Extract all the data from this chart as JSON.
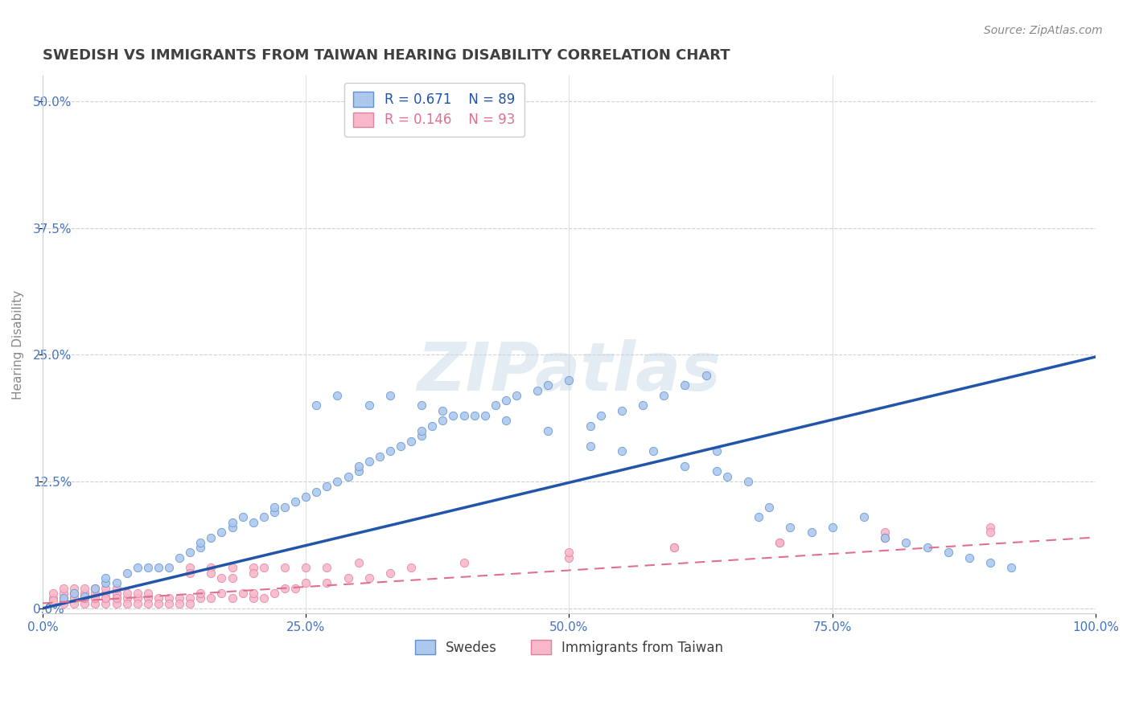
{
  "title": "SWEDISH VS IMMIGRANTS FROM TAIWAN HEARING DISABILITY CORRELATION CHART",
  "source": "Source: ZipAtlas.com",
  "ylabel": "Hearing Disability",
  "xlabel": "",
  "xlim": [
    0.0,
    1.0
  ],
  "ylim": [
    -0.005,
    0.525
  ],
  "yticks": [
    0.0,
    0.125,
    0.25,
    0.375,
    0.5
  ],
  "ytick_labels": [
    "0.0%",
    "12.5%",
    "25.0%",
    "37.5%",
    "50.0%"
  ],
  "xticks": [
    0.0,
    0.25,
    0.5,
    0.75,
    1.0
  ],
  "xtick_labels": [
    "0.0%",
    "25.0%",
    "50.0%",
    "75.0%",
    "100.0%"
  ],
  "swede_color": "#adc8ed",
  "swede_edge_color": "#6090d0",
  "swede_line_color": "#2255aa",
  "taiwan_color": "#f8b8ca",
  "taiwan_edge_color": "#e080a0",
  "taiwan_line_color": "#e07090",
  "R_swede": 0.671,
  "N_swede": 89,
  "R_taiwan": 0.146,
  "N_taiwan": 93,
  "legend_label_swede": "Swedes",
  "legend_label_taiwan": "Immigrants from Taiwan",
  "watermark": "ZIPatlas",
  "background_color": "#ffffff",
  "grid_color": "#d0d0d0",
  "title_color": "#404040",
  "tick_color": "#4472c4",
  "swede_regression_slope": 0.248,
  "swede_regression_intercept": 0.0,
  "taiwan_regression_slope": 0.065,
  "taiwan_regression_intercept": 0.005,
  "swede_scatter_x": [
    0.02,
    0.03,
    0.04,
    0.05,
    0.06,
    0.06,
    0.07,
    0.08,
    0.09,
    0.1,
    0.11,
    0.12,
    0.13,
    0.14,
    0.15,
    0.15,
    0.16,
    0.17,
    0.18,
    0.18,
    0.19,
    0.2,
    0.21,
    0.22,
    0.22,
    0.23,
    0.24,
    0.25,
    0.26,
    0.27,
    0.28,
    0.29,
    0.3,
    0.3,
    0.31,
    0.32,
    0.33,
    0.34,
    0.35,
    0.36,
    0.36,
    0.37,
    0.38,
    0.39,
    0.4,
    0.42,
    0.43,
    0.44,
    0.45,
    0.47,
    0.48,
    0.5,
    0.52,
    0.53,
    0.55,
    0.57,
    0.59,
    0.61,
    0.63,
    0.64,
    0.65,
    0.67,
    0.68,
    0.69,
    0.71,
    0.73,
    0.75,
    0.78,
    0.8,
    0.82,
    0.84,
    0.86,
    0.88,
    0.9,
    0.92,
    0.26,
    0.28,
    0.31,
    0.33,
    0.36,
    0.38,
    0.41,
    0.44,
    0.48,
    0.52,
    0.55,
    0.58,
    0.61,
    0.64
  ],
  "swede_scatter_y": [
    0.01,
    0.015,
    0.012,
    0.02,
    0.025,
    0.03,
    0.025,
    0.035,
    0.04,
    0.04,
    0.04,
    0.04,
    0.05,
    0.055,
    0.06,
    0.065,
    0.07,
    0.075,
    0.08,
    0.085,
    0.09,
    0.085,
    0.09,
    0.095,
    0.1,
    0.1,
    0.105,
    0.11,
    0.115,
    0.12,
    0.125,
    0.13,
    0.135,
    0.14,
    0.145,
    0.15,
    0.155,
    0.16,
    0.165,
    0.17,
    0.175,
    0.18,
    0.185,
    0.19,
    0.19,
    0.19,
    0.2,
    0.205,
    0.21,
    0.215,
    0.22,
    0.225,
    0.18,
    0.19,
    0.195,
    0.2,
    0.21,
    0.22,
    0.23,
    0.155,
    0.13,
    0.125,
    0.09,
    0.1,
    0.08,
    0.075,
    0.08,
    0.09,
    0.07,
    0.065,
    0.06,
    0.055,
    0.05,
    0.045,
    0.04,
    0.2,
    0.21,
    0.2,
    0.21,
    0.2,
    0.195,
    0.19,
    0.185,
    0.175,
    0.16,
    0.155,
    0.155,
    0.14,
    0.135
  ],
  "taiwan_scatter_x": [
    0.01,
    0.01,
    0.01,
    0.02,
    0.02,
    0.02,
    0.02,
    0.02,
    0.03,
    0.03,
    0.03,
    0.03,
    0.04,
    0.04,
    0.04,
    0.04,
    0.05,
    0.05,
    0.05,
    0.05,
    0.06,
    0.06,
    0.06,
    0.06,
    0.07,
    0.07,
    0.07,
    0.07,
    0.08,
    0.08,
    0.08,
    0.09,
    0.09,
    0.09,
    0.1,
    0.1,
    0.1,
    0.11,
    0.11,
    0.12,
    0.12,
    0.13,
    0.13,
    0.14,
    0.14,
    0.15,
    0.15,
    0.16,
    0.17,
    0.18,
    0.19,
    0.2,
    0.2,
    0.21,
    0.22,
    0.23,
    0.24,
    0.25,
    0.27,
    0.29,
    0.31,
    0.33,
    0.35,
    0.14,
    0.16,
    0.18,
    0.2,
    0.14,
    0.16,
    0.17,
    0.18,
    0.2,
    0.21,
    0.23,
    0.25,
    0.27,
    0.3,
    0.4,
    0.5,
    0.6,
    0.7,
    0.8,
    0.9,
    0.5,
    0.6,
    0.7,
    0.8,
    0.9,
    0.03,
    0.04,
    0.05,
    0.06,
    0.07
  ],
  "taiwan_scatter_y": [
    0.01,
    0.015,
    0.008,
    0.01,
    0.015,
    0.02,
    0.008,
    0.005,
    0.01,
    0.015,
    0.02,
    0.005,
    0.01,
    0.015,
    0.02,
    0.005,
    0.01,
    0.015,
    0.02,
    0.005,
    0.01,
    0.015,
    0.02,
    0.005,
    0.01,
    0.015,
    0.02,
    0.005,
    0.01,
    0.015,
    0.005,
    0.01,
    0.015,
    0.005,
    0.01,
    0.015,
    0.005,
    0.01,
    0.005,
    0.01,
    0.005,
    0.01,
    0.005,
    0.01,
    0.005,
    0.01,
    0.015,
    0.01,
    0.015,
    0.01,
    0.015,
    0.01,
    0.015,
    0.01,
    0.015,
    0.02,
    0.02,
    0.025,
    0.025,
    0.03,
    0.03,
    0.035,
    0.04,
    0.04,
    0.04,
    0.04,
    0.04,
    0.035,
    0.035,
    0.03,
    0.03,
    0.035,
    0.04,
    0.04,
    0.04,
    0.04,
    0.045,
    0.045,
    0.05,
    0.06,
    0.065,
    0.075,
    0.08,
    0.055,
    0.06,
    0.065,
    0.07,
    0.075,
    0.01,
    0.01,
    0.01,
    0.01,
    0.01
  ]
}
